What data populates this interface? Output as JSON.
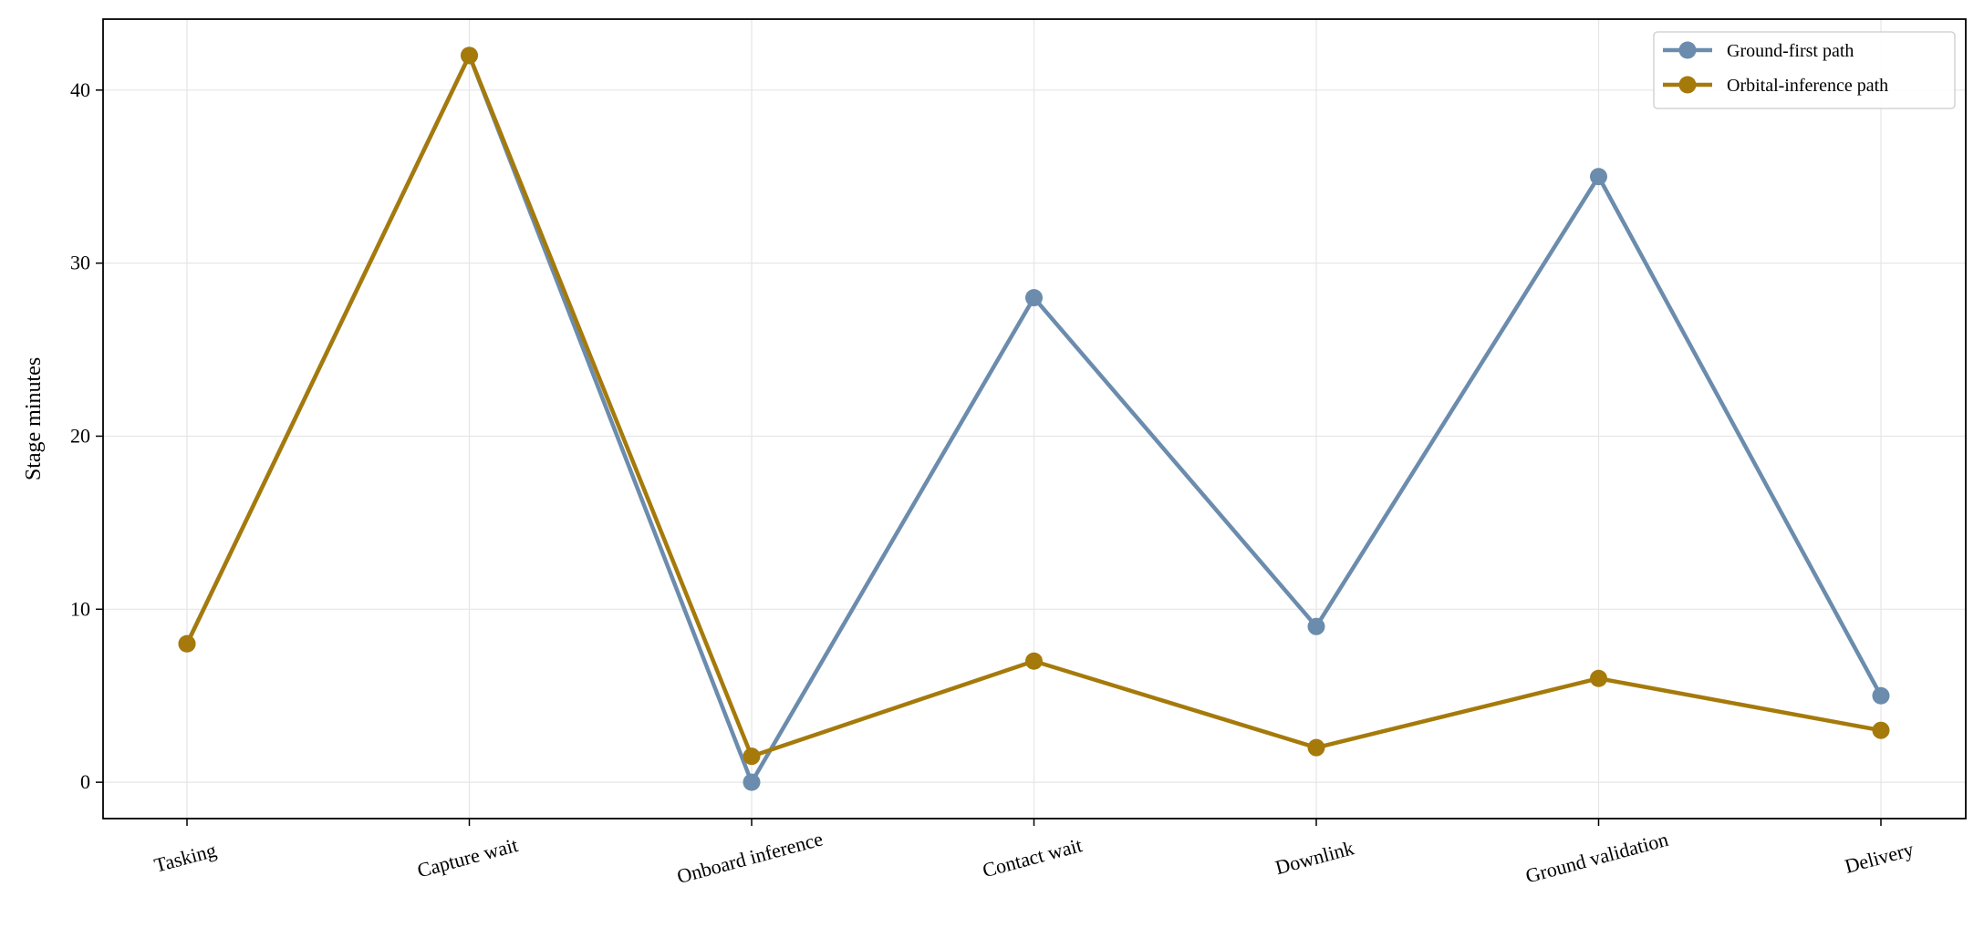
{
  "chart_data": {
    "type": "line",
    "title": "",
    "xlabel": "",
    "ylabel": "Stage minutes",
    "categories": [
      "Tasking",
      "Capture wait",
      "Onboard inference",
      "Contact wait",
      "Downlink",
      "Ground validation",
      "Delivery"
    ],
    "series": [
      {
        "name": "Ground-first path",
        "color": "#6b8cad",
        "values": [
          8,
          42,
          0,
          28,
          9,
          35,
          5
        ]
      },
      {
        "name": "Orbital-inference path",
        "color": "#a57a0b",
        "values": [
          8,
          42,
          1.5,
          7,
          2,
          6,
          3
        ]
      }
    ],
    "ylim": [
      -2.1,
      44.1
    ],
    "yticks": [
      0,
      10,
      20,
      30,
      40
    ],
    "grid": true,
    "legend_position": "top-right"
  }
}
